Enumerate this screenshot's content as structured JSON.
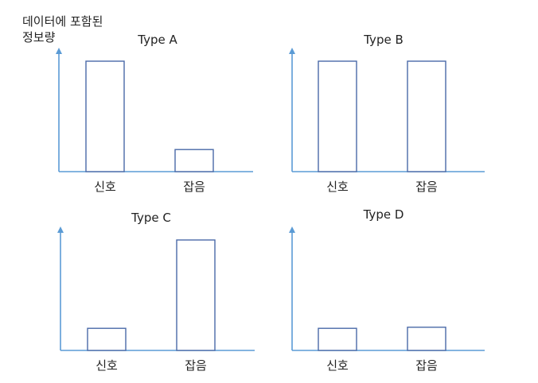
{
  "ylabel": {
    "line1": "데이터에 포함된",
    "line2": "정보량"
  },
  "colors": {
    "axis": "#5b9bd5",
    "bar_stroke": "#4a6aa8",
    "bar_fill": "#ffffff"
  },
  "chart_data": [
    {
      "type": "bar",
      "title": "Type A",
      "categories": [
        "신호",
        "잡음"
      ],
      "values": [
        100,
        20
      ],
      "ylim": [
        0,
        100
      ]
    },
    {
      "type": "bar",
      "title": "Type B",
      "categories": [
        "신호",
        "잡음"
      ],
      "values": [
        100,
        100
      ],
      "ylim": [
        0,
        100
      ]
    },
    {
      "type": "bar",
      "title": "Type C",
      "categories": [
        "신호",
        "잡음"
      ],
      "values": [
        20,
        100
      ],
      "ylim": [
        0,
        100
      ]
    },
    {
      "type": "bar",
      "title": "Type D",
      "categories": [
        "신호",
        "잡음"
      ],
      "values": [
        20,
        21
      ],
      "ylim": [
        0,
        100
      ]
    }
  ]
}
